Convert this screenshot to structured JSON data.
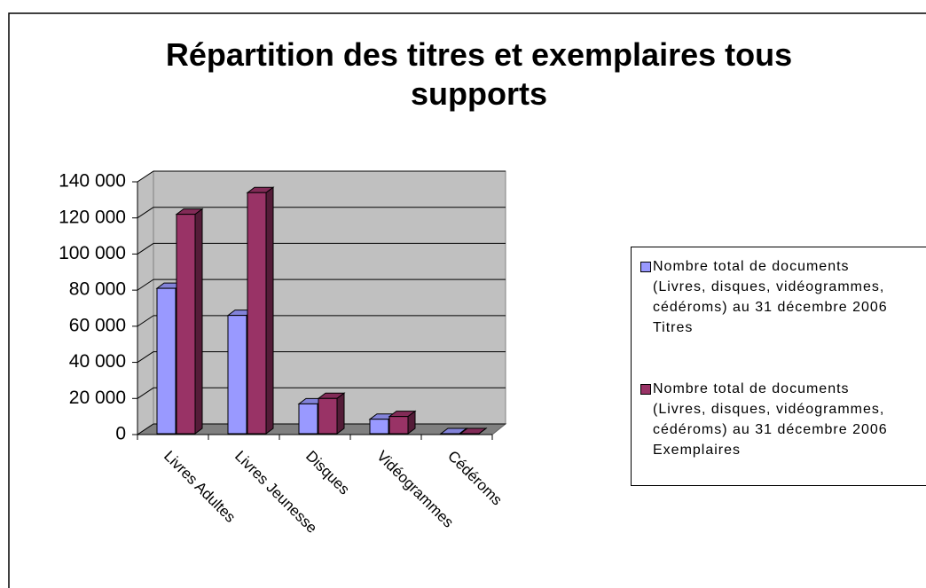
{
  "chart_data": {
    "type": "bar3d",
    "title": "Répartition des titres et exemplaires tous supports",
    "categories": [
      "Livres Adultes",
      "Livres Jeunesse",
      "Disques",
      "Vidéogrammes",
      "Cédéroms"
    ],
    "series": [
      {
        "name": "Nombre total de documents (Livres, disques, vidéogrammes, cédéroms) au 31 décembre 2006 Titres",
        "color": "#9999ff",
        "values": [
          81000,
          66000,
          17000,
          8500,
          500
        ]
      },
      {
        "name": "Nombre total de documents (Livres, disques, vidéogrammes, cédéroms) au 31 décembre 2006 Exemplaires",
        "color": "#993366",
        "values": [
          122000,
          134000,
          20000,
          10000,
          500
        ]
      }
    ],
    "ylim": [
      0,
      140000
    ],
    "yticks": [
      0,
      {
        "value": 20000,
        "label": "20 000"
      },
      {
        "value": 40000,
        "label": "40 000"
      },
      {
        "value": 60000,
        "label": "60 000"
      },
      {
        "value": 80000,
        "label": "80 000"
      },
      {
        "value": 100000,
        "label": "100 000"
      },
      {
        "value": 120000,
        "label": "120 000"
      },
      {
        "value": 140000,
        "label": "140 000"
      }
    ],
    "grid": true,
    "legend": "right"
  }
}
